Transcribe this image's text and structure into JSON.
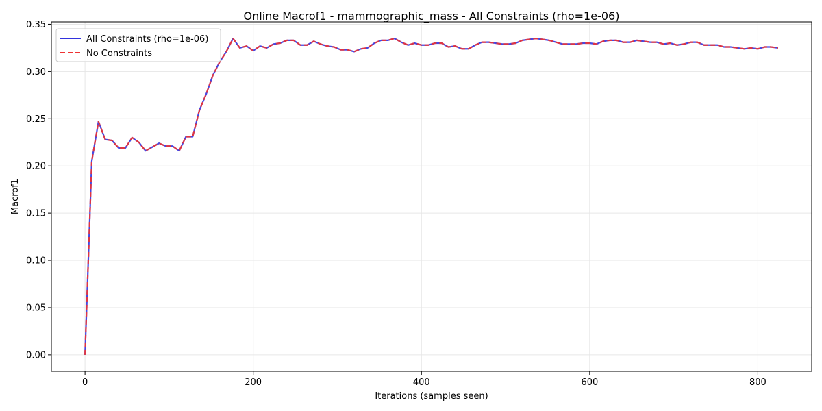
{
  "chart_data": {
    "type": "line",
    "title": "Online Macrof1 - mammographic_mass - All Constraints (rho=1e-06)",
    "xlabel": "Iterations (samples seen)",
    "ylabel": "Macrof1",
    "xlim": [
      -40,
      864
    ],
    "ylim": [
      -0.0175,
      0.3525
    ],
    "xticks": [
      0,
      200,
      400,
      600,
      800
    ],
    "xtick_labels": [
      "0",
      "200",
      "400",
      "600",
      "800"
    ],
    "yticks": [
      0.0,
      0.05,
      0.1,
      0.15,
      0.2,
      0.25,
      0.3,
      0.35
    ],
    "ytick_labels": [
      "0.00",
      "0.05",
      "0.10",
      "0.15",
      "0.20",
      "0.25",
      "0.30",
      "0.35"
    ],
    "grid": true,
    "legend_position": "top-left",
    "x": [
      0,
      8,
      16,
      24,
      32,
      40,
      48,
      56,
      64,
      72,
      80,
      88,
      96,
      104,
      112,
      120,
      128,
      136,
      144,
      152,
      160,
      168,
      176,
      184,
      192,
      200,
      208,
      216,
      224,
      232,
      240,
      248,
      256,
      264,
      272,
      280,
      288,
      296,
      304,
      312,
      320,
      328,
      336,
      344,
      352,
      360,
      368,
      376,
      384,
      392,
      400,
      408,
      416,
      424,
      432,
      440,
      448,
      456,
      464,
      472,
      480,
      488,
      496,
      504,
      512,
      520,
      528,
      536,
      544,
      552,
      560,
      568,
      576,
      584,
      592,
      600,
      608,
      616,
      624,
      632,
      640,
      648,
      656,
      664,
      672,
      680,
      688,
      696,
      704,
      712,
      720,
      728,
      736,
      744,
      752,
      760,
      768,
      776,
      784,
      792,
      800,
      808,
      816,
      824
    ],
    "series": [
      {
        "name": "All Constraints (rho=1e-06)",
        "color": "#3333dd",
        "style": "solid",
        "values": [
          0.0,
          0.205,
          0.247,
          0.228,
          0.227,
          0.219,
          0.219,
          0.23,
          0.225,
          0.216,
          0.22,
          0.224,
          0.221,
          0.221,
          0.216,
          0.231,
          0.231,
          0.259,
          0.276,
          0.296,
          0.31,
          0.321,
          0.335,
          0.325,
          0.327,
          0.322,
          0.327,
          0.325,
          0.329,
          0.33,
          0.333,
          0.333,
          0.328,
          0.328,
          0.332,
          0.329,
          0.327,
          0.326,
          0.323,
          0.323,
          0.321,
          0.324,
          0.325,
          0.33,
          0.333,
          0.333,
          0.335,
          0.331,
          0.328,
          0.33,
          0.328,
          0.328,
          0.33,
          0.33,
          0.326,
          0.327,
          0.324,
          0.324,
          0.328,
          0.331,
          0.331,
          0.33,
          0.329,
          0.329,
          0.33,
          0.333,
          0.334,
          0.335,
          0.334,
          0.333,
          0.331,
          0.329,
          0.329,
          0.329,
          0.33,
          0.33,
          0.329,
          0.332,
          0.333,
          0.333,
          0.331,
          0.331,
          0.333,
          0.332,
          0.331,
          0.331,
          0.329,
          0.33,
          0.328,
          0.329,
          0.331,
          0.331,
          0.328,
          0.328,
          0.328,
          0.326,
          0.326,
          0.325,
          0.324,
          0.325,
          0.324,
          0.326,
          0.326,
          0.325
        ]
      },
      {
        "name": "No Constraints",
        "color": "#ee3333",
        "style": "dashed",
        "values": [
          0.0,
          0.205,
          0.247,
          0.228,
          0.227,
          0.219,
          0.219,
          0.23,
          0.225,
          0.216,
          0.22,
          0.224,
          0.221,
          0.221,
          0.216,
          0.231,
          0.231,
          0.259,
          0.276,
          0.296,
          0.31,
          0.321,
          0.335,
          0.325,
          0.327,
          0.322,
          0.327,
          0.325,
          0.329,
          0.33,
          0.333,
          0.333,
          0.328,
          0.328,
          0.332,
          0.329,
          0.327,
          0.326,
          0.323,
          0.323,
          0.321,
          0.324,
          0.325,
          0.33,
          0.333,
          0.333,
          0.335,
          0.331,
          0.328,
          0.33,
          0.328,
          0.328,
          0.33,
          0.33,
          0.326,
          0.327,
          0.324,
          0.324,
          0.328,
          0.331,
          0.331,
          0.33,
          0.329,
          0.329,
          0.33,
          0.333,
          0.334,
          0.335,
          0.334,
          0.333,
          0.331,
          0.329,
          0.329,
          0.329,
          0.33,
          0.33,
          0.329,
          0.332,
          0.333,
          0.333,
          0.331,
          0.331,
          0.333,
          0.332,
          0.331,
          0.331,
          0.329,
          0.33,
          0.328,
          0.329,
          0.331,
          0.331,
          0.328,
          0.328,
          0.328,
          0.326,
          0.326,
          0.325,
          0.324,
          0.325,
          0.324,
          0.326,
          0.326,
          0.325
        ]
      }
    ]
  }
}
